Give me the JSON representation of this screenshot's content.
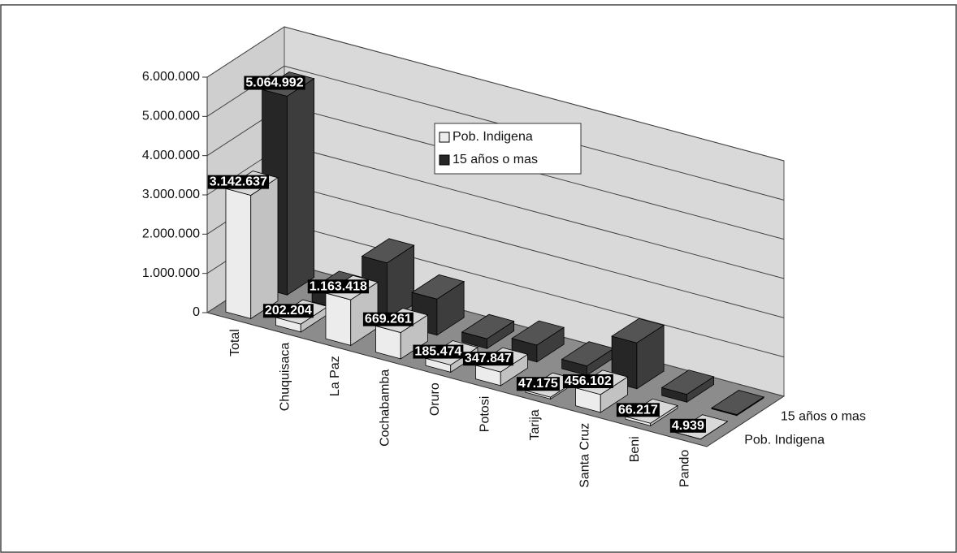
{
  "chart_data": {
    "type": "bar3d",
    "categories": [
      "Total",
      "Chuquisaca",
      "La Paz",
      "Cochabamba",
      "Oruro",
      "Potosi",
      "Tarija",
      "Santa Cruz",
      "Beni",
      "Pando"
    ],
    "series": [
      {
        "name": "Pob. Indigena",
        "color": "#ececec",
        "values": [
          3142637,
          202204,
          1163418,
          669261,
          185474,
          347847,
          47175,
          456102,
          66217,
          4939
        ],
        "value_labels": [
          "3.142.637",
          "202.204",
          "1.163.418",
          "669.261",
          "185.474",
          "347.847",
          "47.175",
          "456.102",
          "66.217",
          "4.939"
        ]
      },
      {
        "name": "15 años o mas",
        "color": "#262626",
        "values": [
          5064992,
          330000,
          1500000,
          920000,
          250000,
          430000,
          240000,
          1170000,
          200000,
          25000
        ],
        "value_labels": [
          "5.064.992",
          null,
          null,
          null,
          null,
          null,
          null,
          null,
          null,
          null
        ]
      }
    ],
    "ylim": [
      0,
      6000000
    ],
    "yticks": [
      0,
      {
        "value": 1000000,
        "label": "1.000.000"
      },
      {
        "value": 2000000,
        "label": "2.000.000"
      },
      {
        "value": 3000000,
        "label": "3.000.000"
      },
      {
        "value": 4000000,
        "label": "4.000.000"
      },
      {
        "value": 5000000,
        "label": "5.000.000"
      },
      {
        "value": 6000000,
        "label": "6.000.000"
      }
    ],
    "grid": true,
    "legend": "top-center"
  }
}
